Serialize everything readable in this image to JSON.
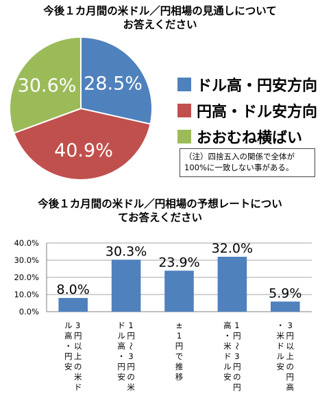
{
  "header": {
    "title1": "今後１カ月間の米ドル／円相場の見通しについて\nお答えください",
    "title2": "今後１カ月間の米ドル／円相場の予想レートについ\nてお答えください"
  },
  "legend": [
    {
      "label": "ドル高・円安方向",
      "color": "#4f81bd"
    },
    {
      "label": "円高・ドル安方向",
      "color": "#c0504d"
    },
    {
      "label": "おおむね横ばい",
      "color": "#9bbb59"
    }
  ],
  "note": "（注）四捨五入の関係で全体が\n100%に一致しない事がある。",
  "chart_data": [
    {
      "type": "pie",
      "title": "今後１カ月間の米ドル／円相場の見通しについてお答えください",
      "labels": [
        "ドル高・円安方向",
        "円高・ドル安方向",
        "おおむね横ばい"
      ],
      "values": [
        28.5,
        40.9,
        30.6
      ],
      "value_labels": [
        "28.5%",
        "40.9%",
        "30.6%"
      ],
      "colors": [
        "#4f81bd",
        "#c0504d",
        "#9bbb59"
      ],
      "legend_position": "right"
    },
    {
      "type": "bar",
      "title": "今後１カ月間の米ドル／円相場の予想レートについてお答えください",
      "categories": [
        "3円以上の米ドル高・円安",
        "1円～3円の米ドル高・円安",
        "±1円で推移",
        "1円～3円の円高・米ドル安",
        "3円以上の円高・米ドル安"
      ],
      "values": [
        8.0,
        30.3,
        23.9,
        32.0,
        5.9
      ],
      "value_labels": [
        "8.0%",
        "30.3%",
        "23.9%",
        "32.0%",
        "5.9%"
      ],
      "ylim": [
        0,
        40
      ],
      "yticks": [
        "0.0%",
        "10.0%",
        "20.0%",
        "30.0%",
        "40.0%"
      ],
      "grid": true,
      "color": "#4f81bd",
      "label_position": "vertical"
    }
  ]
}
